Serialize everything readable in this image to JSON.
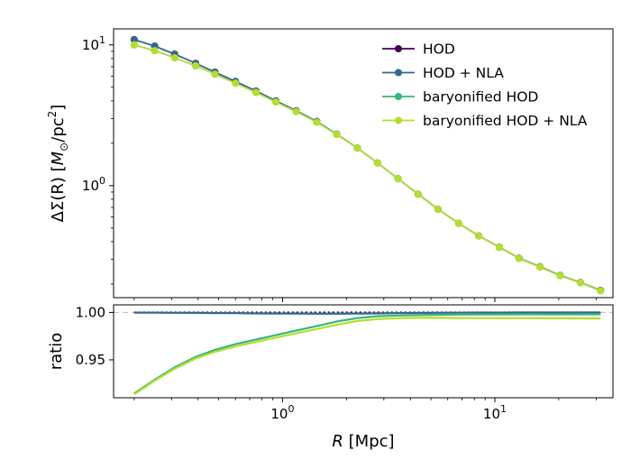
{
  "chart_data": [
    {
      "type": "line",
      "panel": "top",
      "ylabel": "ΔΣ(R) [M⊙/pc²]",
      "xscale": "log",
      "yscale": "log",
      "xlim": [
        0.16,
        36
      ],
      "ylim": [
        0.16,
        13
      ],
      "yticks": [
        {
          "value": 1,
          "base": "10",
          "exp": "0"
        },
        {
          "value": 10,
          "base": "10",
          "exp": "1"
        }
      ],
      "xticks": [
        {
          "value": 1,
          "base": "10",
          "exp": "0"
        },
        {
          "value": 10,
          "base": "10",
          "exp": "1"
        }
      ],
      "legend_position": "upper right",
      "x": [
        0.2,
        0.25,
        0.31,
        0.39,
        0.48,
        0.6,
        0.75,
        0.93,
        1.16,
        1.45,
        1.8,
        2.25,
        2.8,
        3.5,
        4.35,
        5.4,
        6.75,
        8.4,
        10.5,
        13.0,
        16.3,
        20.3,
        25.3,
        31.5
      ],
      "series": [
        {
          "name": "HOD",
          "color": "#440154",
          "values": [
            10.9,
            9.8,
            8.6,
            7.4,
            6.4,
            5.5,
            4.7,
            4.0,
            3.4,
            2.85,
            2.32,
            1.85,
            1.45,
            1.12,
            0.87,
            0.68,
            0.54,
            0.44,
            0.365,
            0.305,
            0.265,
            0.23,
            0.205,
            0.18
          ]
        },
        {
          "name": "HOD + NLA",
          "color": "#31688e",
          "values": [
            10.9,
            9.8,
            8.6,
            7.4,
            6.4,
            5.5,
            4.7,
            4.0,
            3.4,
            2.85,
            2.32,
            1.85,
            1.45,
            1.12,
            0.87,
            0.68,
            0.54,
            0.44,
            0.365,
            0.305,
            0.265,
            0.23,
            0.205,
            0.18
          ]
        },
        {
          "name": "baryonified HOD",
          "color": "#35b779",
          "values": [
            10.0,
            9.1,
            8.1,
            7.1,
            6.2,
            5.35,
            4.6,
            3.93,
            3.36,
            2.82,
            2.31,
            1.85,
            1.45,
            1.12,
            0.87,
            0.68,
            0.54,
            0.44,
            0.364,
            0.304,
            0.264,
            0.229,
            0.204,
            0.179
          ]
        },
        {
          "name": "baryonified HOD + NLA",
          "color": "#b5de2b",
          "values": [
            10.0,
            9.1,
            8.1,
            7.1,
            6.2,
            5.35,
            4.6,
            3.93,
            3.36,
            2.82,
            2.31,
            1.85,
            1.45,
            1.12,
            0.87,
            0.68,
            0.54,
            0.44,
            0.364,
            0.304,
            0.264,
            0.229,
            0.204,
            0.179
          ]
        }
      ]
    },
    {
      "type": "line",
      "panel": "bottom",
      "xlabel": "R [Mpc]",
      "ylabel": "ratio",
      "xscale": "log",
      "xlim": [
        0.16,
        36
      ],
      "ylim": [
        0.91,
        1.008
      ],
      "yticks": [
        {
          "value": 0.95,
          "text": "0.95"
        },
        {
          "value": 1.0,
          "text": "1.00"
        }
      ],
      "xticks": [
        {
          "value": 1,
          "base": "10",
          "exp": "0"
        },
        {
          "value": 10,
          "base": "10",
          "exp": "1"
        }
      ],
      "reference_line": 1.0,
      "x": [
        0.2,
        0.25,
        0.31,
        0.39,
        0.48,
        0.6,
        0.75,
        0.93,
        1.16,
        1.45,
        1.8,
        2.25,
        2.8,
        3.5,
        4.35,
        5.4,
        6.75,
        8.4,
        10.5,
        13.0,
        16.3,
        20.3,
        25.3,
        31.5
      ],
      "series": [
        {
          "name": "HOD",
          "color": "#440154",
          "style": "dotted",
          "values": [
            1.0,
            1.0,
            1.0,
            1.0,
            1.0,
            1.0,
            1.0,
            1.0,
            1.0,
            1.0,
            1.0,
            1.0,
            1.0,
            1.0,
            1.0,
            1.0,
            1.0,
            1.0,
            1.0,
            1.0,
            1.0,
            1.0,
            1.0,
            1.0
          ]
        },
        {
          "name": "HOD + NLA",
          "color": "#31688e",
          "style": "solid",
          "values": [
            0.9998,
            0.9997,
            0.9996,
            0.9995,
            0.9993,
            0.9992,
            0.999,
            0.9989,
            0.9988,
            0.9987,
            0.9987,
            0.9988,
            0.999,
            0.9992,
            0.9994,
            0.9996,
            0.9997,
            0.9998,
            0.9998,
            0.9999,
            0.9999,
            0.9999,
            0.9999,
            0.9999
          ]
        },
        {
          "name": "baryonified HOD",
          "color": "#35b779",
          "style": "solid",
          "values": [
            0.9145,
            0.929,
            0.942,
            0.953,
            0.9605,
            0.9665,
            0.9715,
            0.976,
            0.981,
            0.9855,
            0.9905,
            0.994,
            0.996,
            0.9968,
            0.9972,
            0.9975,
            0.9977,
            0.9978,
            0.9979,
            0.998,
            0.998,
            0.998,
            0.998,
            0.998
          ]
        },
        {
          "name": "baryonified HOD + NLA",
          "color": "#b5de2b",
          "style": "solid",
          "values": [
            0.9135,
            0.928,
            0.9405,
            0.9515,
            0.9585,
            0.964,
            0.969,
            0.9735,
            0.978,
            0.9825,
            0.987,
            0.991,
            0.993,
            0.994,
            0.9943,
            0.9943,
            0.9941,
            0.994,
            0.9939,
            0.9939,
            0.9938,
            0.9937,
            0.9937,
            0.9936
          ]
        }
      ]
    }
  ]
}
